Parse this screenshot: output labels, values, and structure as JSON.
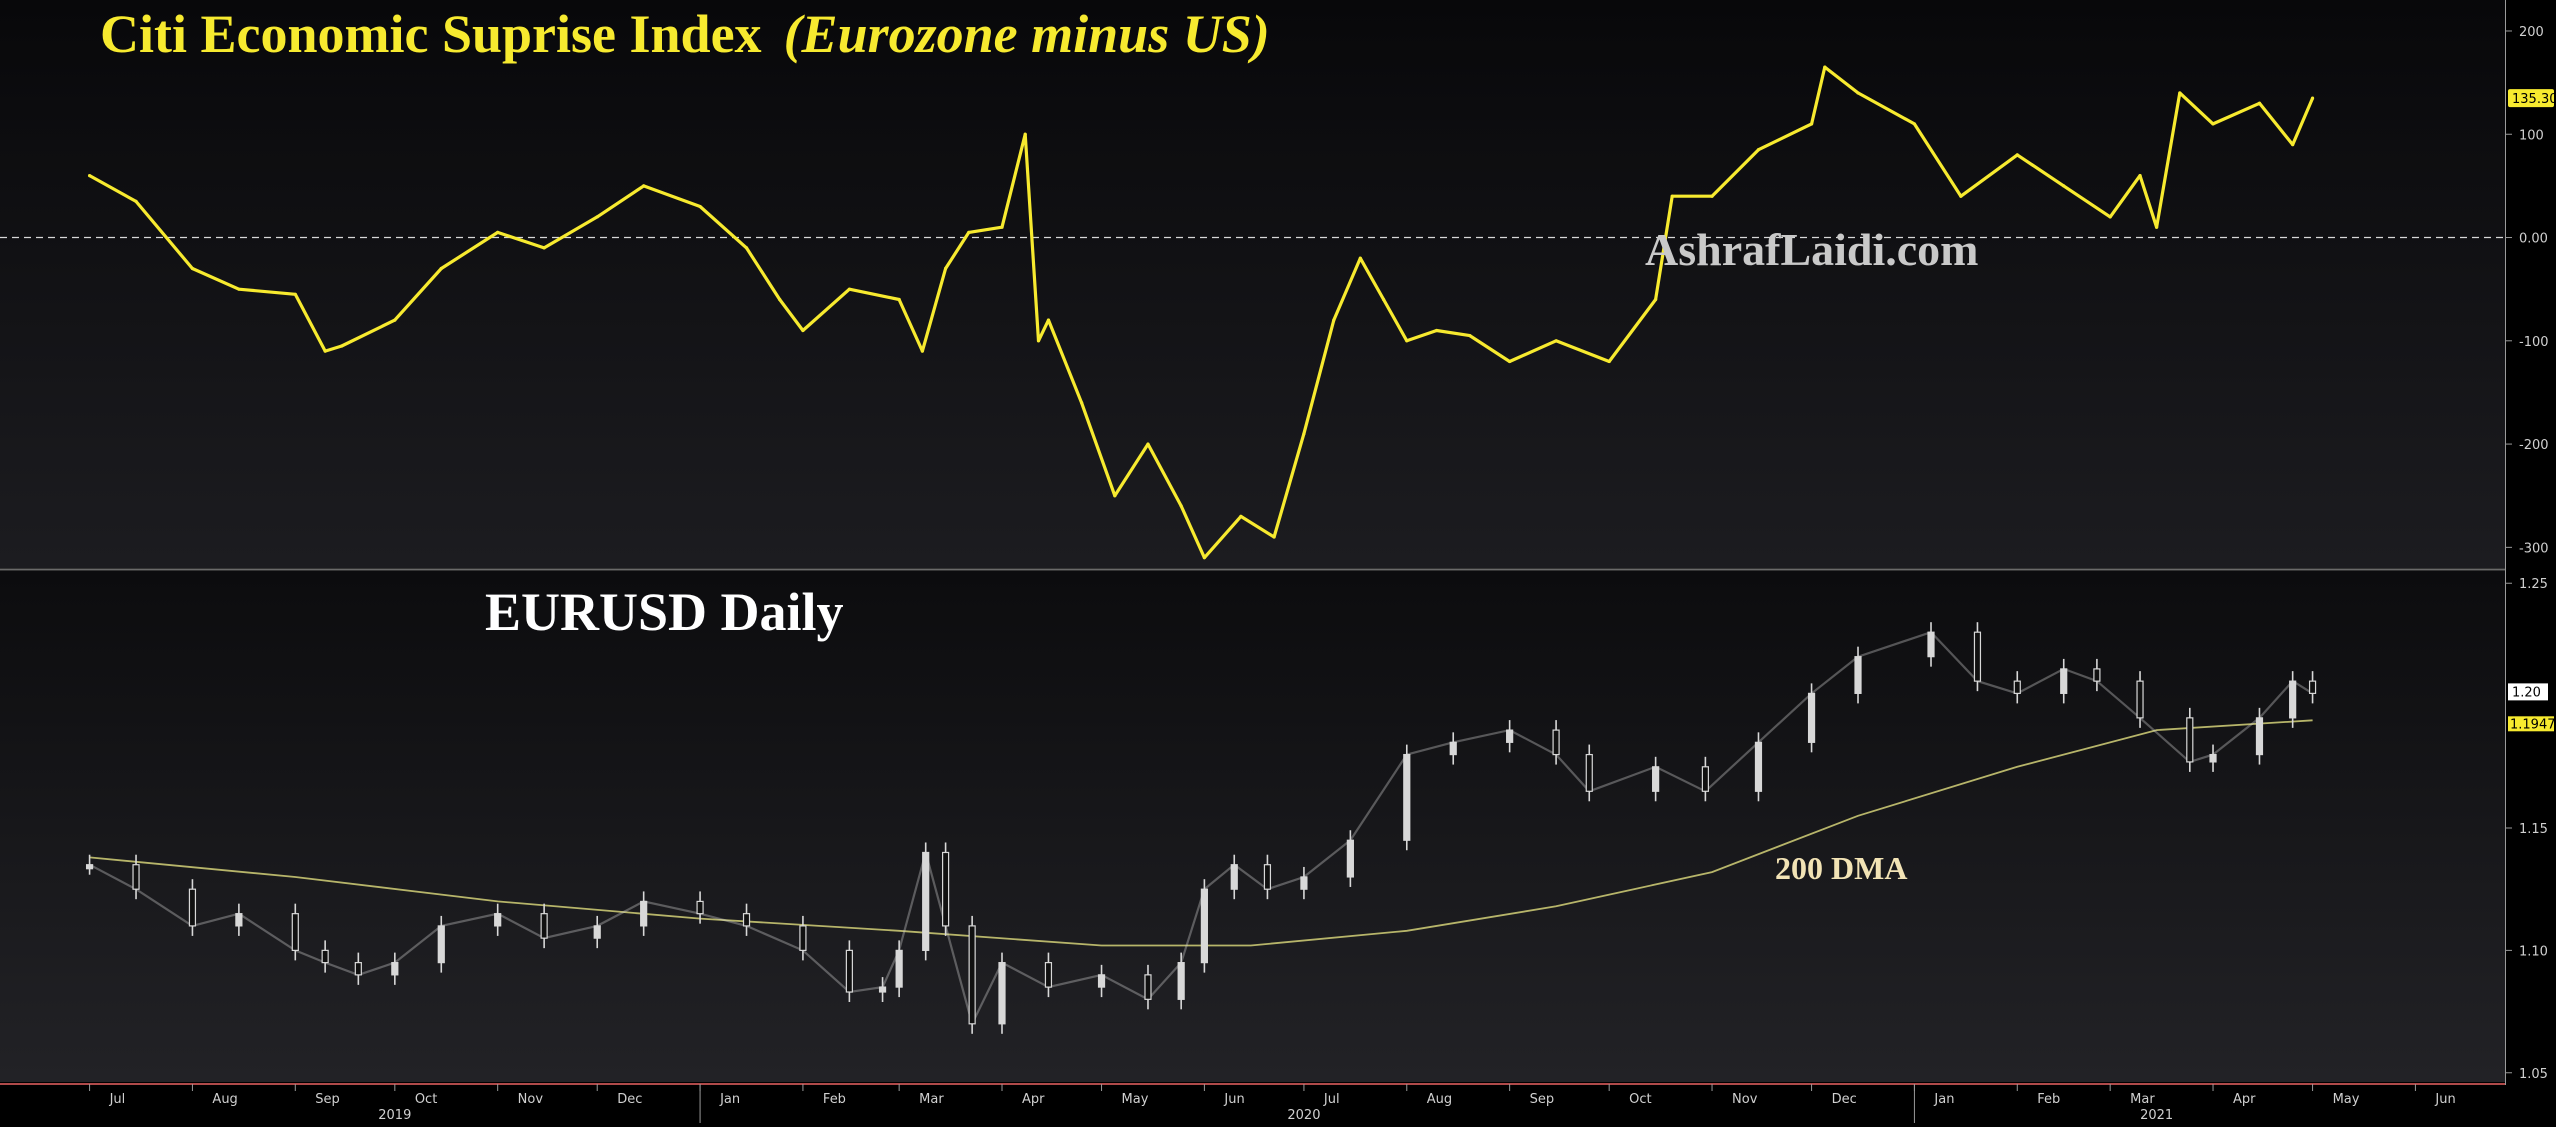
{
  "chart_data": [
    {
      "type": "line",
      "title": "Citi Economic Suprise Index",
      "subtitle": "(Eurozone minus US)",
      "watermark": "AshrafLaidi.com",
      "ylim": [
        -320,
        230
      ],
      "yticks": [
        {
          "value": 200,
          "label": "200"
        },
        {
          "value": 100,
          "label": "100"
        },
        {
          "value": 0,
          "label": "0.00"
        },
        {
          "value": -100,
          "label": "-100"
        },
        {
          "value": -200,
          "label": "-200"
        },
        {
          "value": -300,
          "label": "-300"
        }
      ],
      "reference_line": {
        "value": 0,
        "style": "dashed"
      },
      "last_value_label": "135.30",
      "series": [
        {
          "color": "#f7ea2f",
          "x": [
            "2019-07-01",
            "2019-07-15",
            "2019-08-01",
            "2019-08-15",
            "2019-09-01",
            "2019-09-10",
            "2019-09-15",
            "2019-10-01",
            "2019-10-15",
            "2019-11-01",
            "2019-11-15",
            "2019-12-01",
            "2019-12-15",
            "2020-01-01",
            "2020-01-15",
            "2020-01-25",
            "2020-02-01",
            "2020-02-15",
            "2020-03-01",
            "2020-03-08",
            "2020-03-15",
            "2020-03-22",
            "2020-04-01",
            "2020-04-08",
            "2020-04-12",
            "2020-04-15",
            "2020-04-25",
            "2020-05-05",
            "2020-05-15",
            "2020-05-25",
            "2020-06-01",
            "2020-06-12",
            "2020-06-22",
            "2020-07-01",
            "2020-07-10",
            "2020-07-18",
            "2020-07-25",
            "2020-08-01",
            "2020-08-10",
            "2020-08-20",
            "2020-09-01",
            "2020-09-15",
            "2020-10-01",
            "2020-10-15",
            "2020-10-20",
            "2020-11-01",
            "2020-11-15",
            "2020-12-01",
            "2020-12-05",
            "2020-12-15",
            "2021-01-01",
            "2021-01-15",
            "2021-02-01",
            "2021-02-15",
            "2021-03-01",
            "2021-03-10",
            "2021-03-15",
            "2021-03-22",
            "2021-04-01",
            "2021-04-15",
            "2021-04-25",
            "2021-05-01"
          ],
          "values": [
            60,
            35,
            -30,
            -50,
            -55,
            -110,
            -105,
            -80,
            -30,
            5,
            -10,
            20,
            50,
            30,
            -10,
            -60,
            -90,
            -50,
            -60,
            -110,
            -30,
            5,
            10,
            100,
            -100,
            -80,
            -160,
            -250,
            -200,
            -260,
            -310,
            -270,
            -290,
            -190,
            -80,
            -20,
            -60,
            -100,
            -90,
            -95,
            -120,
            -100,
            -120,
            -60,
            40,
            40,
            85,
            110,
            165,
            140,
            110,
            40,
            80,
            50,
            20,
            60,
            10,
            140,
            110,
            130,
            90,
            135
          ]
        }
      ]
    },
    {
      "type": "line",
      "title": "EURUSD Daily",
      "annotation": "200 DMA",
      "ylim": [
        1.045,
        1.255
      ],
      "yticks": [
        {
          "value": 1.25,
          "label": "1.25"
        },
        {
          "value": 1.15,
          "label": "1.15"
        },
        {
          "value": 1.1,
          "label": "1.10"
        },
        {
          "value": 1.05,
          "label": "1.05"
        }
      ],
      "last_value_labels": [
        "1.20",
        "1.1947"
      ],
      "series": [
        {
          "role": "price",
          "style": "candlestick",
          "color": "#d8d8d8",
          "x": [
            "2019-07-01",
            "2019-07-15",
            "2019-08-01",
            "2019-08-15",
            "2019-09-01",
            "2019-09-10",
            "2019-09-20",
            "2019-10-01",
            "2019-10-15",
            "2019-11-01",
            "2019-11-15",
            "2019-12-01",
            "2019-12-15",
            "2020-01-01",
            "2020-01-15",
            "2020-02-01",
            "2020-02-15",
            "2020-02-25",
            "2020-03-01",
            "2020-03-09",
            "2020-03-15",
            "2020-03-23",
            "2020-04-01",
            "2020-04-15",
            "2020-05-01",
            "2020-05-15",
            "2020-05-25",
            "2020-06-01",
            "2020-06-10",
            "2020-06-20",
            "2020-07-01",
            "2020-07-15",
            "2020-08-01",
            "2020-08-15",
            "2020-09-01",
            "2020-09-15",
            "2020-09-25",
            "2020-10-15",
            "2020-10-30",
            "2020-11-15",
            "2020-12-01",
            "2020-12-15",
            "2021-01-06",
            "2021-01-20",
            "2021-02-01",
            "2021-02-15",
            "2021-02-25",
            "2021-03-10",
            "2021-03-25",
            "2021-04-01",
            "2021-04-15",
            "2021-04-25",
            "2021-05-01"
          ],
          "values": [
            1.135,
            1.125,
            1.11,
            1.115,
            1.1,
            1.095,
            1.09,
            1.095,
            1.11,
            1.115,
            1.105,
            1.11,
            1.12,
            1.115,
            1.11,
            1.1,
            1.083,
            1.085,
            1.1,
            1.14,
            1.11,
            1.07,
            1.095,
            1.085,
            1.09,
            1.08,
            1.095,
            1.125,
            1.135,
            1.125,
            1.13,
            1.145,
            1.18,
            1.185,
            1.19,
            1.18,
            1.165,
            1.175,
            1.165,
            1.185,
            1.205,
            1.22,
            1.23,
            1.21,
            1.205,
            1.215,
            1.21,
            1.195,
            1.177,
            1.18,
            1.195,
            1.21,
            1.205
          ]
        },
        {
          "role": "moving-average",
          "name": "200 DMA",
          "color": "#b7b56a",
          "x": [
            "2019-07-01",
            "2019-09-01",
            "2019-11-01",
            "2020-01-01",
            "2020-03-01",
            "2020-05-01",
            "2020-06-15",
            "2020-08-01",
            "2020-09-15",
            "2020-11-01",
            "2020-12-15",
            "2021-02-01",
            "2021-03-15",
            "2021-05-01"
          ],
          "values": [
            1.138,
            1.13,
            1.12,
            1.113,
            1.108,
            1.102,
            1.102,
            1.108,
            1.118,
            1.132,
            1.155,
            1.175,
            1.19,
            1.194
          ]
        }
      ]
    }
  ],
  "x_axis": {
    "month_ticks": [
      {
        "date": "2019-07-01",
        "label": "Jul"
      },
      {
        "date": "2019-08-01",
        "label": "Aug"
      },
      {
        "date": "2019-09-01",
        "label": "Sep"
      },
      {
        "date": "2019-10-01",
        "label": "Oct"
      },
      {
        "date": "2019-11-01",
        "label": "Nov"
      },
      {
        "date": "2019-12-01",
        "label": "Dec"
      },
      {
        "date": "2020-01-01",
        "label": "Jan"
      },
      {
        "date": "2020-02-01",
        "label": "Feb"
      },
      {
        "date": "2020-03-01",
        "label": "Mar"
      },
      {
        "date": "2020-04-01",
        "label": "Apr"
      },
      {
        "date": "2020-05-01",
        "label": "May"
      },
      {
        "date": "2020-06-01",
        "label": "Jun"
      },
      {
        "date": "2020-07-01",
        "label": "Jul"
      },
      {
        "date": "2020-08-01",
        "label": "Aug"
      },
      {
        "date": "2020-09-01",
        "label": "Sep"
      },
      {
        "date": "2020-10-01",
        "label": "Oct"
      },
      {
        "date": "2020-11-01",
        "label": "Nov"
      },
      {
        "date": "2020-12-01",
        "label": "Dec"
      },
      {
        "date": "2021-01-01",
        "label": "Jan"
      },
      {
        "date": "2021-02-01",
        "label": "Feb"
      },
      {
        "date": "2021-03-01",
        "label": "Mar"
      },
      {
        "date": "2021-04-01",
        "label": "Apr"
      },
      {
        "date": "2021-05-01",
        "label": "May"
      },
      {
        "date": "2021-06-01",
        "label": "Jun"
      }
    ],
    "year_labels": [
      {
        "date": "2019-10-01",
        "label": "2019"
      },
      {
        "date": "2020-07-01",
        "label": "2020"
      },
      {
        "date": "2021-03-15",
        "label": "2021"
      }
    ],
    "year_dividers": [
      "2020-01-01",
      "2021-01-01"
    ]
  },
  "colors": {
    "background": "#000000",
    "panel_top": "#151518",
    "panel_bottom": "#1a1a1d",
    "index_line": "#f7ea2f",
    "title": "#f7ea2f",
    "eurusd_title": "#ffffff",
    "watermark": "#c9c9c9",
    "price_bars": "#d8d8d8",
    "dma_line": "#b7b56a",
    "dma_label": "#f2e3b5",
    "axis_text": "#d0d0d0",
    "value_tag": "#f7ea2f"
  }
}
